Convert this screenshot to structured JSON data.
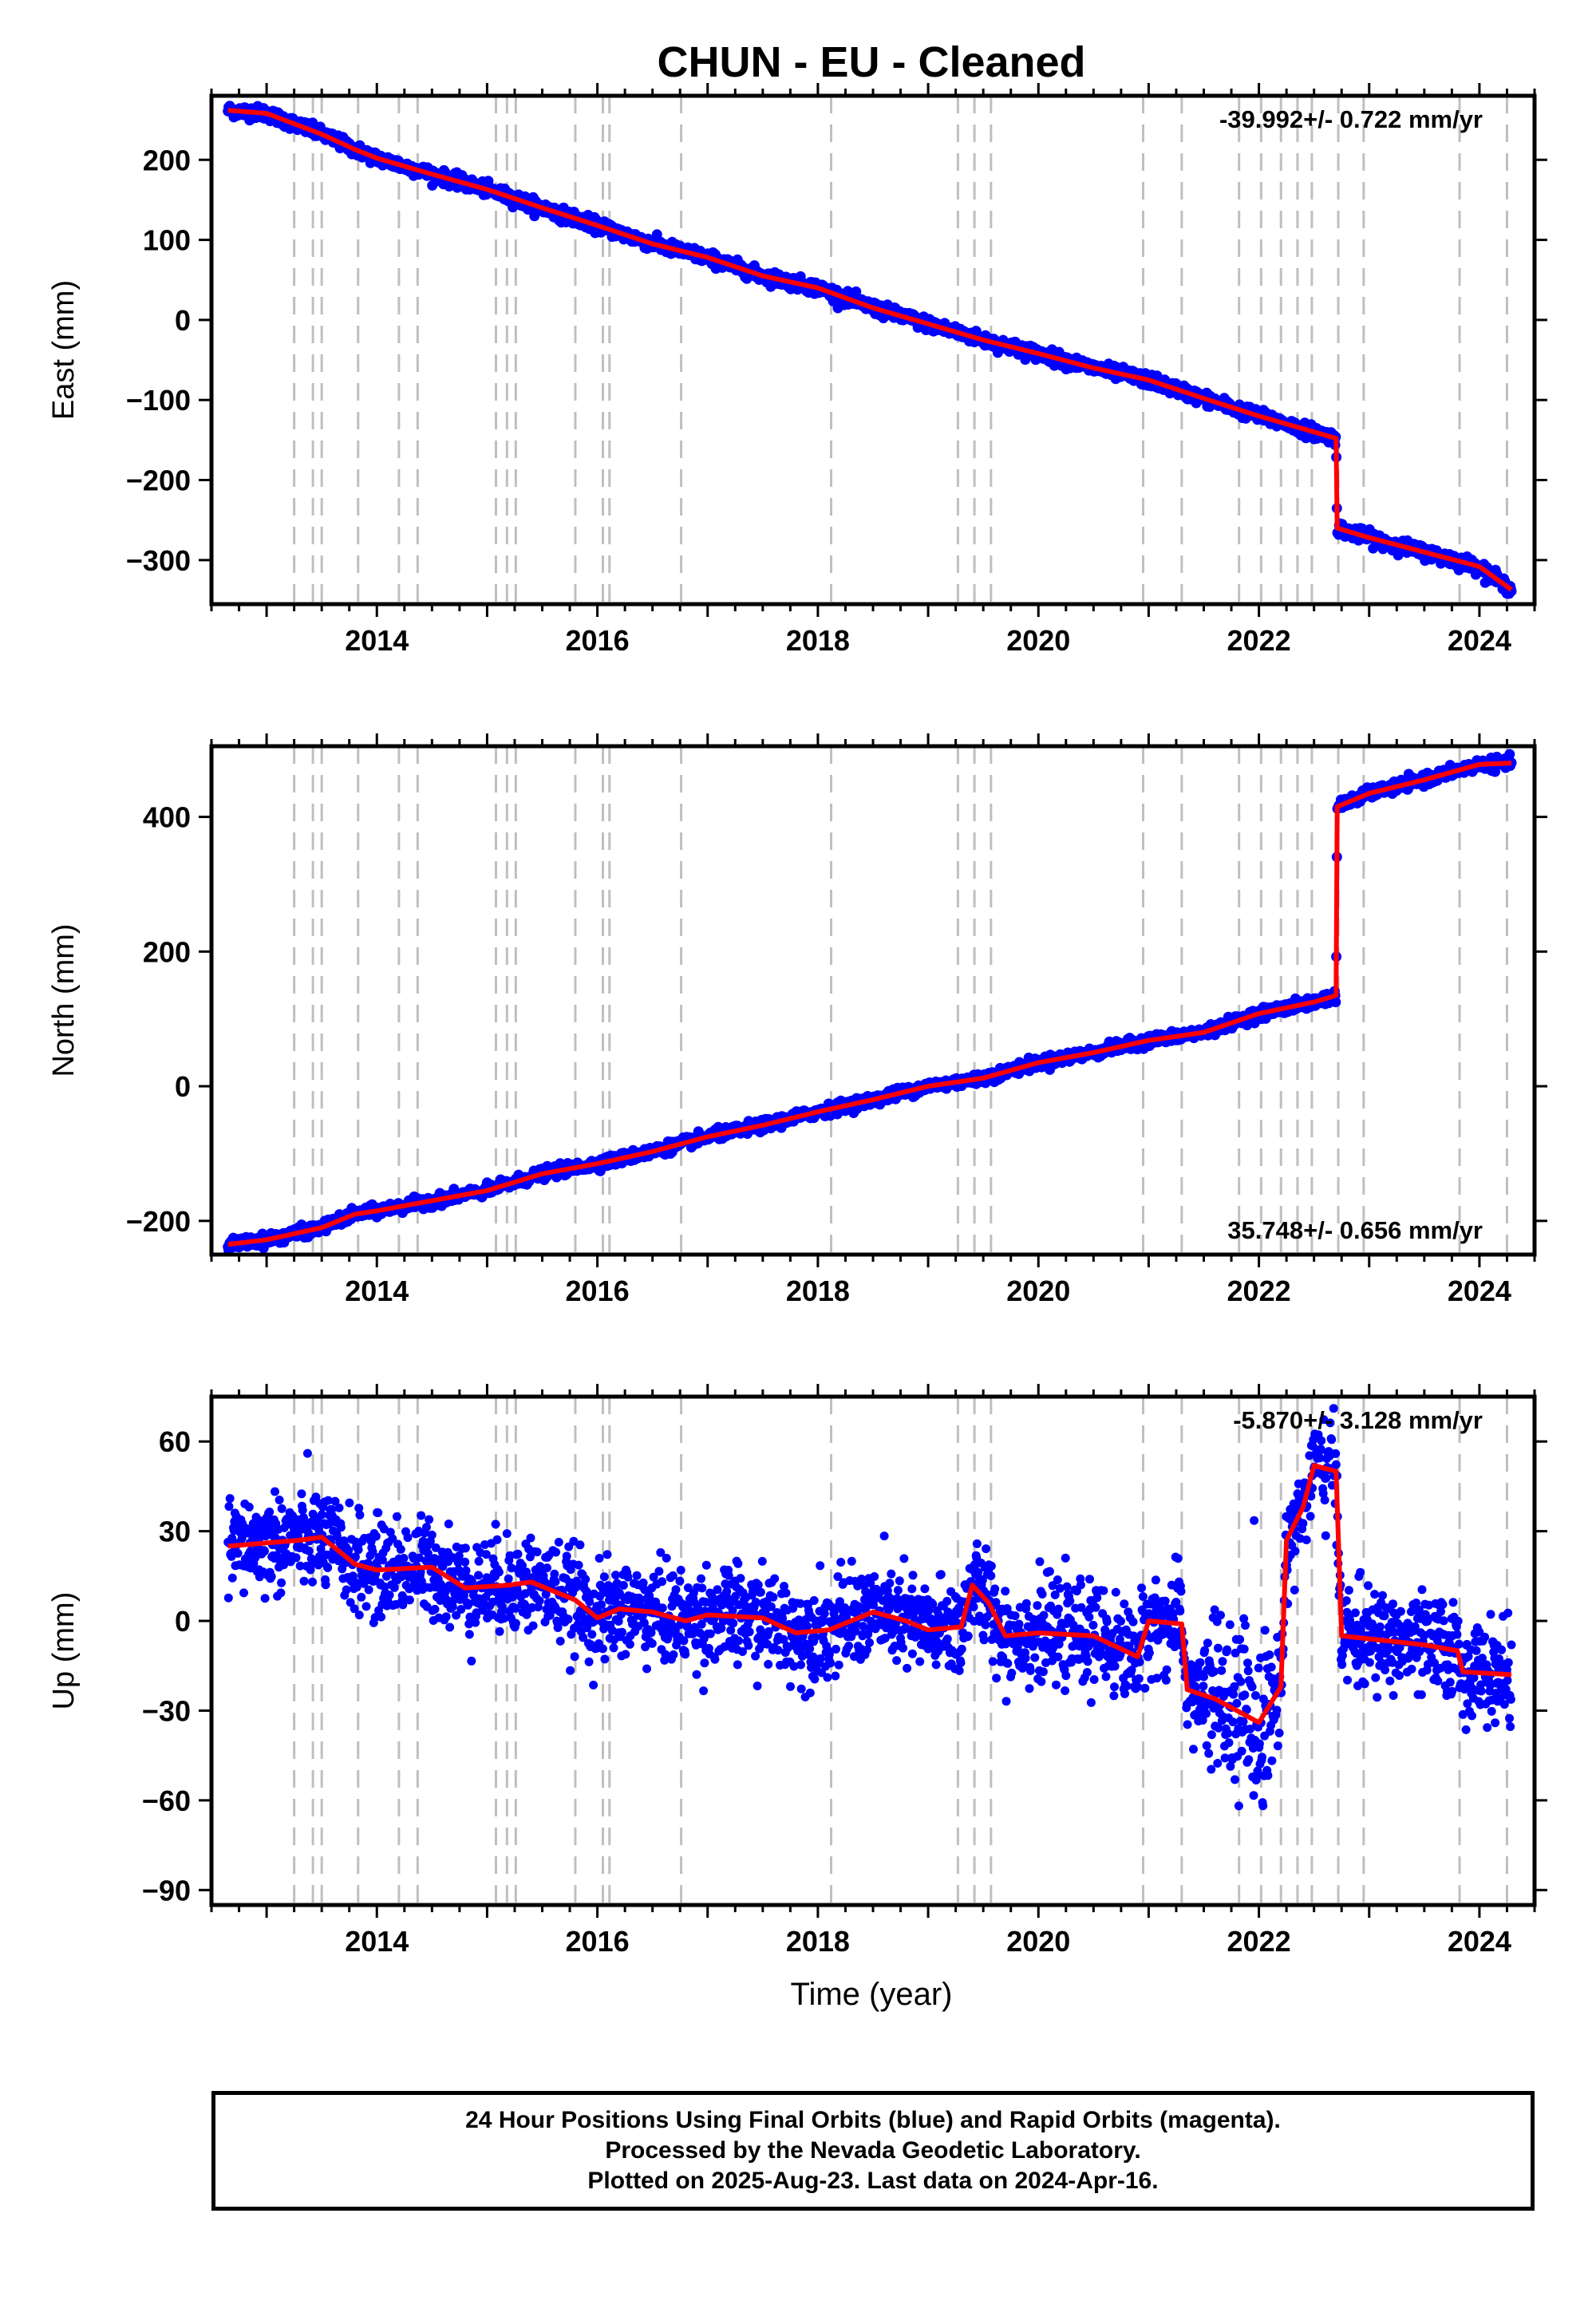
{
  "title": "CHUN  - EU - Cleaned",
  "xlabel": "Time (year)",
  "caption": [
    "24 Hour Positions Using Final Orbits (blue) and Rapid Orbits (magenta).",
    "Processed by the Nevada Geodetic Laboratory.",
    "Plotted on 2025-Aug-23. Last data on 2024-Apr-16."
  ],
  "colors": {
    "data_points": "#0000ff",
    "model_line": "#ff0000",
    "event_lines": "#bfbfbf"
  },
  "chart_data": [
    {
      "type": "scatter",
      "name_key": "east",
      "ylabel": "East (mm)",
      "rate_label": "-39.992+/- 0.722 mm/yr",
      "rate_position": "top-right",
      "xlim": [
        2012.5,
        2024.5
      ],
      "ylim": [
        -355,
        280
      ],
      "xticks": [
        2014,
        2016,
        2018,
        2020,
        2022,
        2024
      ],
      "yticks": [
        -300,
        -200,
        -100,
        0,
        100,
        200
      ],
      "ytick_labels": [
        "−300",
        "−200",
        "−100",
        "0",
        "100",
        "200"
      ],
      "grid": false,
      "data_start": 2012.65,
      "data_end": 2024.29,
      "noise_sd": 4,
      "model_line": [
        [
          2012.65,
          262
        ],
        [
          2013.0,
          258
        ],
        [
          2013.5,
          232
        ],
        [
          2013.8,
          213
        ],
        [
          2014.0,
          202
        ],
        [
          2014.5,
          182
        ],
        [
          2015.0,
          163
        ],
        [
          2015.5,
          140
        ],
        [
          2016.0,
          118
        ],
        [
          2016.5,
          95
        ],
        [
          2017.0,
          78
        ],
        [
          2017.5,
          55
        ],
        [
          2018.0,
          40
        ],
        [
          2018.5,
          15
        ],
        [
          2019.0,
          -5
        ],
        [
          2019.5,
          -25
        ],
        [
          2020.0,
          -42
        ],
        [
          2020.5,
          -60
        ],
        [
          2021.0,
          -75
        ],
        [
          2021.5,
          -98
        ],
        [
          2022.0,
          -120
        ],
        [
          2022.3,
          -132
        ],
        [
          2022.5,
          -140
        ],
        [
          2022.7,
          -148
        ],
        [
          2022.71,
          -260
        ],
        [
          2023.0,
          -272
        ],
        [
          2023.5,
          -290
        ],
        [
          2024.0,
          -308
        ],
        [
          2024.29,
          -337
        ]
      ]
    },
    {
      "type": "scatter",
      "name_key": "north",
      "ylabel": "North (mm)",
      "rate_label": "35.748+/- 0.656 mm/yr",
      "rate_position": "bottom-right",
      "xlim": [
        2012.5,
        2024.5
      ],
      "ylim": [
        -250,
        505
      ],
      "xticks": [
        2014,
        2016,
        2018,
        2020,
        2022,
        2024
      ],
      "yticks": [
        -200,
        0,
        200,
        400
      ],
      "ytick_labels": [
        "−200",
        "0",
        "200",
        "400"
      ],
      "grid": false,
      "data_start": 2012.65,
      "data_end": 2024.29,
      "noise_sd": 4,
      "model_line": [
        [
          2012.65,
          -235
        ],
        [
          2013.0,
          -228
        ],
        [
          2013.5,
          -210
        ],
        [
          2013.8,
          -190
        ],
        [
          2014.0,
          -185
        ],
        [
          2014.5,
          -170
        ],
        [
          2015.0,
          -155
        ],
        [
          2015.5,
          -130
        ],
        [
          2016.0,
          -115
        ],
        [
          2016.5,
          -97
        ],
        [
          2017.0,
          -75
        ],
        [
          2017.5,
          -58
        ],
        [
          2018.0,
          -38
        ],
        [
          2018.5,
          -20
        ],
        [
          2019.0,
          0
        ],
        [
          2019.5,
          12
        ],
        [
          2020.0,
          35
        ],
        [
          2020.5,
          50
        ],
        [
          2021.0,
          68
        ],
        [
          2021.5,
          80
        ],
        [
          2022.0,
          108
        ],
        [
          2022.5,
          125
        ],
        [
          2022.7,
          135
        ],
        [
          2022.71,
          415
        ],
        [
          2023.0,
          435
        ],
        [
          2023.5,
          455
        ],
        [
          2024.0,
          478
        ],
        [
          2024.29,
          480
        ]
      ]
    },
    {
      "type": "scatter",
      "name_key": "up",
      "ylabel": "Up (mm)",
      "rate_label": "-5.870+/- 3.128 mm/yr",
      "rate_position": "top-right",
      "xlim": [
        2012.5,
        2024.5
      ],
      "ylim": [
        -95,
        75
      ],
      "xticks": [
        2014,
        2016,
        2018,
        2020,
        2022,
        2024
      ],
      "yticks": [
        -90,
        -60,
        -30,
        0,
        30,
        60
      ],
      "ytick_labels": [
        "−90",
        "−60",
        "−30",
        "0",
        "30",
        "60"
      ],
      "grid": false,
      "data_start": 2012.65,
      "data_end": 2024.29,
      "noise_sd": 8,
      "model_line": [
        [
          2012.65,
          25
        ],
        [
          2013.3,
          27
        ],
        [
          2013.5,
          28
        ],
        [
          2013.8,
          19
        ],
        [
          2014.0,
          17
        ],
        [
          2014.5,
          18
        ],
        [
          2014.8,
          11
        ],
        [
          2015.2,
          12
        ],
        [
          2015.4,
          13
        ],
        [
          2015.8,
          7
        ],
        [
          2016.0,
          1
        ],
        [
          2016.2,
          4
        ],
        [
          2016.5,
          3
        ],
        [
          2016.8,
          0
        ],
        [
          2017.0,
          2
        ],
        [
          2017.5,
          1
        ],
        [
          2017.8,
          -4
        ],
        [
          2018.1,
          -3
        ],
        [
          2018.5,
          3
        ],
        [
          2018.8,
          0
        ],
        [
          2019.0,
          -3
        ],
        [
          2019.3,
          -2
        ],
        [
          2019.4,
          12
        ],
        [
          2019.55,
          6
        ],
        [
          2019.7,
          -5
        ],
        [
          2020.0,
          -4
        ],
        [
          2020.5,
          -5
        ],
        [
          2020.9,
          -12
        ],
        [
          2021.0,
          0
        ],
        [
          2021.3,
          -1
        ],
        [
          2021.35,
          -23
        ],
        [
          2021.6,
          -26
        ],
        [
          2021.8,
          -30
        ],
        [
          2022.0,
          -34
        ],
        [
          2022.2,
          -22
        ],
        [
          2022.25,
          27
        ],
        [
          2022.4,
          38
        ],
        [
          2022.5,
          52
        ],
        [
          2022.7,
          50
        ],
        [
          2022.75,
          -5
        ],
        [
          2023.0,
          -6
        ],
        [
          2023.5,
          -8
        ],
        [
          2023.8,
          -10
        ],
        [
          2023.85,
          -17
        ],
        [
          2024.29,
          -18
        ]
      ]
    }
  ],
  "event_lines": [
    2013.25,
    2013.42,
    2013.5,
    2013.83,
    2014.2,
    2014.37,
    2015.08,
    2015.18,
    2015.26,
    2015.8,
    2016.05,
    2016.11,
    2016.76,
    2018.12,
    2019.27,
    2019.42,
    2019.57,
    2020.95,
    2021.3,
    2021.82,
    2022.02,
    2022.2,
    2022.35,
    2022.48,
    2022.72,
    2022.95,
    2023.82,
    2024.25
  ]
}
